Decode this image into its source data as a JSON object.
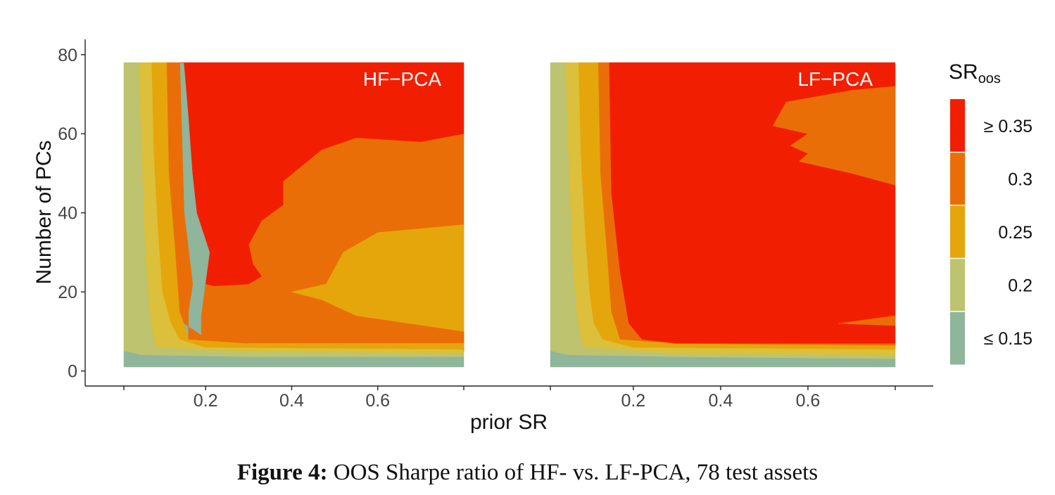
{
  "colors": {
    "le015": "#8fb59b",
    "c020": "#bdc36f",
    "c025": "#dcbf3a",
    "c025b": "#e5a60b",
    "c030": "#ea6e08",
    "ge035": "#f21e02",
    "background": "#ffffff",
    "axis": "#222222"
  },
  "chart_data": {
    "type": "heatmap",
    "xlabel": "prior SR",
    "ylabel": "Number of PCs",
    "x_ticks": [
      "0.2",
      "0.4",
      "0.6"
    ],
    "y_ticks": [
      "0",
      "20",
      "40",
      "60",
      "80"
    ],
    "xlim": [
      0.01,
      0.8
    ],
    "ylim": [
      1,
      78
    ],
    "legend": {
      "title_main": "SR",
      "title_sub": "oos",
      "placement": "right",
      "bins": [
        {
          "label": "≥ 0.35",
          "color": "#f21e02"
        },
        {
          "label": "0.3",
          "color": "#ea6e08"
        },
        {
          "label": "0.25",
          "color": "#e5a60b"
        },
        {
          "label": "0.2",
          "color": "#bdc36f"
        },
        {
          "label": "≤ 0.15",
          "color": "#8fb59b"
        }
      ]
    },
    "panels": [
      {
        "label": "HF−PCA",
        "base_color": "#8fb59b",
        "regions": [
          {
            "color": "#bdc36f",
            "points": [
              [
                0.01,
                78
              ],
              [
                0.045,
                78
              ],
              [
                0.05,
                60
              ],
              [
                0.06,
                30
              ],
              [
                0.07,
                15
              ],
              [
                0.08,
                8
              ],
              [
                0.085,
                6
              ],
              [
                0.3,
                5
              ],
              [
                0.8,
                4.5
              ],
              [
                0.8,
                3.5
              ],
              [
                0.3,
                3.5
              ],
              [
                0.05,
                4
              ],
              [
                0.01,
                5
              ]
            ]
          },
          {
            "color": "#dcbf3a",
            "points": [
              [
                0.045,
                78
              ],
              [
                0.075,
                78
              ],
              [
                0.08,
                55
              ],
              [
                0.09,
                35
              ],
              [
                0.1,
                20
              ],
              [
                0.12,
                12
              ],
              [
                0.14,
                8
              ],
              [
                0.2,
                6
              ],
              [
                0.8,
                5.5
              ],
              [
                0.8,
                4.5
              ],
              [
                0.3,
                5
              ],
              [
                0.085,
                6
              ],
              [
                0.08,
                8
              ],
              [
                0.07,
                15
              ],
              [
                0.06,
                30
              ],
              [
                0.05,
                60
              ]
            ]
          },
          {
            "color": "#e5a60b",
            "points": [
              [
                0.075,
                78
              ],
              [
                0.11,
                78
              ],
              [
                0.115,
                50
              ],
              [
                0.13,
                30
              ],
              [
                0.14,
                15
              ],
              [
                0.16,
                8
              ],
              [
                0.3,
                7
              ],
              [
                0.8,
                6
              ],
              [
                0.8,
                5.5
              ],
              [
                0.2,
                6
              ],
              [
                0.14,
                8
              ],
              [
                0.12,
                12
              ],
              [
                0.1,
                20
              ],
              [
                0.09,
                35
              ],
              [
                0.08,
                55
              ]
            ]
          },
          {
            "color": "#ea6e08",
            "points": [
              [
                0.11,
                78
              ],
              [
                0.14,
                78
              ],
              [
                0.15,
                40
              ],
              [
                0.17,
                22
              ],
              [
                0.16,
                15
              ],
              [
                0.16,
                8
              ],
              [
                0.3,
                7
              ],
              [
                0.8,
                7
              ],
              [
                0.8,
                10
              ],
              [
                0.55,
                14
              ],
              [
                0.4,
                13
              ],
              [
                0.4,
                9
              ],
              [
                0.3,
                8
              ],
              [
                0.19,
                9
              ],
              [
                0.15,
                12
              ],
              [
                0.14,
                15
              ],
              [
                0.13,
                30
              ],
              [
                0.115,
                50
              ]
            ]
          },
          {
            "color": "#ea6e08",
            "points": [
              [
                0.19,
                9
              ],
              [
                0.3,
                8
              ],
              [
                0.4,
                9
              ],
              [
                0.4,
                12
              ],
              [
                0.55,
                14
              ],
              [
                0.8,
                10
              ],
              [
                0.8,
                5
              ],
              [
                0.8,
                60
              ],
              [
                0.7,
                58
              ],
              [
                0.55,
                59
              ],
              [
                0.45,
                56
              ],
              [
                0.38,
                52
              ],
              [
                0.33,
                46
              ],
              [
                0.28,
                38
              ],
              [
                0.22,
                28
              ],
              [
                0.2,
                22
              ],
              [
                0.19,
                14
              ]
            ]
          },
          {
            "color": "#e5a60b",
            "points": [
              [
                0.8,
                10
              ],
              [
                0.55,
                14
              ],
              [
                0.47,
                18
              ],
              [
                0.4,
                20
              ],
              [
                0.48,
                22
              ],
              [
                0.52,
                30
              ],
              [
                0.6,
                35
              ],
              [
                0.8,
                37
              ],
              [
                0.8,
                20
              ]
            ]
          },
          {
            "color": "#e5a60b",
            "points": [
              [
                0.8,
                7
              ],
              [
                0.3,
                7
              ],
              [
                0.8,
                6
              ]
            ]
          },
          {
            "color": "#f21e02",
            "points": [
              [
                0.14,
                78
              ],
              [
                0.8,
                78
              ],
              [
                0.8,
                60
              ],
              [
                0.7,
                58
              ],
              [
                0.55,
                59
              ],
              [
                0.47,
                56
              ],
              [
                0.38,
                48
              ],
              [
                0.38,
                42
              ],
              [
                0.33,
                38
              ],
              [
                0.3,
                32
              ],
              [
                0.31,
                27
              ],
              [
                0.33,
                24
              ],
              [
                0.3,
                22
              ],
              [
                0.22,
                21.5
              ],
              [
                0.2,
                22
              ],
              [
                0.21,
                30
              ],
              [
                0.18,
                40
              ],
              [
                0.17,
                50
              ],
              [
                0.16,
                65
              ],
              [
                0.15,
                78
              ]
            ]
          },
          {
            "color": "#8fb59b",
            "points": [
              [
                0.01,
                5
              ],
              [
                0.05,
                4
              ],
              [
                0.3,
                3.5
              ],
              [
                0.8,
                3.5
              ],
              [
                0.8,
                1
              ],
              [
                0.01,
                1
              ]
            ]
          }
        ]
      },
      {
        "label": "LF−PCA",
        "base_color": "#8fb59b",
        "regions": [
          {
            "color": "#bdc36f",
            "points": [
              [
                0.01,
                78
              ],
              [
                0.045,
                78
              ],
              [
                0.05,
                60
              ],
              [
                0.06,
                30
              ],
              [
                0.07,
                15
              ],
              [
                0.08,
                8
              ],
              [
                0.09,
                6
              ],
              [
                0.3,
                4.5
              ],
              [
                0.8,
                4
              ],
              [
                0.8,
                3
              ],
              [
                0.3,
                3.5
              ],
              [
                0.05,
                4
              ],
              [
                0.01,
                5
              ]
            ]
          },
          {
            "color": "#dcbf3a",
            "points": [
              [
                0.045,
                78
              ],
              [
                0.075,
                78
              ],
              [
                0.08,
                55
              ],
              [
                0.09,
                35
              ],
              [
                0.1,
                20
              ],
              [
                0.11,
                12
              ],
              [
                0.13,
                8
              ],
              [
                0.2,
                6
              ],
              [
                0.8,
                5.5
              ],
              [
                0.8,
                4
              ],
              [
                0.3,
                4.5
              ],
              [
                0.09,
                6
              ],
              [
                0.08,
                8
              ],
              [
                0.07,
                15
              ],
              [
                0.06,
                30
              ],
              [
                0.05,
                60
              ]
            ]
          },
          {
            "color": "#e5a60b",
            "points": [
              [
                0.075,
                78
              ],
              [
                0.12,
                78
              ],
              [
                0.125,
                50
              ],
              [
                0.14,
                30
              ],
              [
                0.15,
                15
              ],
              [
                0.17,
                8
              ],
              [
                0.3,
                7
              ],
              [
                0.8,
                6.5
              ],
              [
                0.8,
                5.5
              ],
              [
                0.2,
                6
              ],
              [
                0.13,
                8
              ],
              [
                0.11,
                12
              ],
              [
                0.1,
                20
              ],
              [
                0.09,
                35
              ],
              [
                0.08,
                55
              ]
            ]
          },
          {
            "color": "#ea6e08",
            "points": [
              [
                0.12,
                78
              ],
              [
                0.145,
                78
              ],
              [
                0.15,
                45
              ],
              [
                0.17,
                25
              ],
              [
                0.19,
                12
              ],
              [
                0.22,
                8
              ],
              [
                0.3,
                7
              ],
              [
                0.8,
                7
              ],
              [
                0.8,
                6.5
              ],
              [
                0.3,
                7
              ],
              [
                0.17,
                8
              ],
              [
                0.15,
                15
              ],
              [
                0.14,
                30
              ],
              [
                0.125,
                50
              ]
            ]
          },
          {
            "color": "#f21e02",
            "points": [
              [
                0.145,
                78
              ],
              [
                0.8,
                78
              ],
              [
                0.8,
                7
              ],
              [
                0.3,
                7
              ],
              [
                0.22,
                8
              ],
              [
                0.19,
                12
              ],
              [
                0.17,
                25
              ],
              [
                0.15,
                45
              ]
            ]
          },
          {
            "color": "#ea6e08",
            "points": [
              [
                0.8,
                72
              ],
              [
                0.7,
                71
              ],
              [
                0.55,
                68
              ],
              [
                0.52,
                62
              ],
              [
                0.6,
                60
              ],
              [
                0.56,
                57
              ],
              [
                0.6,
                55
              ],
              [
                0.58,
                53
              ],
              [
                0.7,
                50
              ],
              [
                0.8,
                47
              ]
            ]
          },
          {
            "color": "#ea6e08",
            "points": [
              [
                0.8,
                14
              ],
              [
                0.67,
                12
              ],
              [
                0.8,
                11.5
              ]
            ]
          },
          {
            "color": "#8fb59b",
            "points": [
              [
                0.01,
                5
              ],
              [
                0.05,
                4
              ],
              [
                0.3,
                3.5
              ],
              [
                0.8,
                3
              ],
              [
                0.8,
                1
              ],
              [
                0.01,
                1
              ]
            ]
          }
        ]
      }
    ]
  },
  "caption": {
    "label": "Figure 4:",
    "text": "OOS Sharpe ratio of HF- vs. LF-PCA, 78 test assets"
  }
}
